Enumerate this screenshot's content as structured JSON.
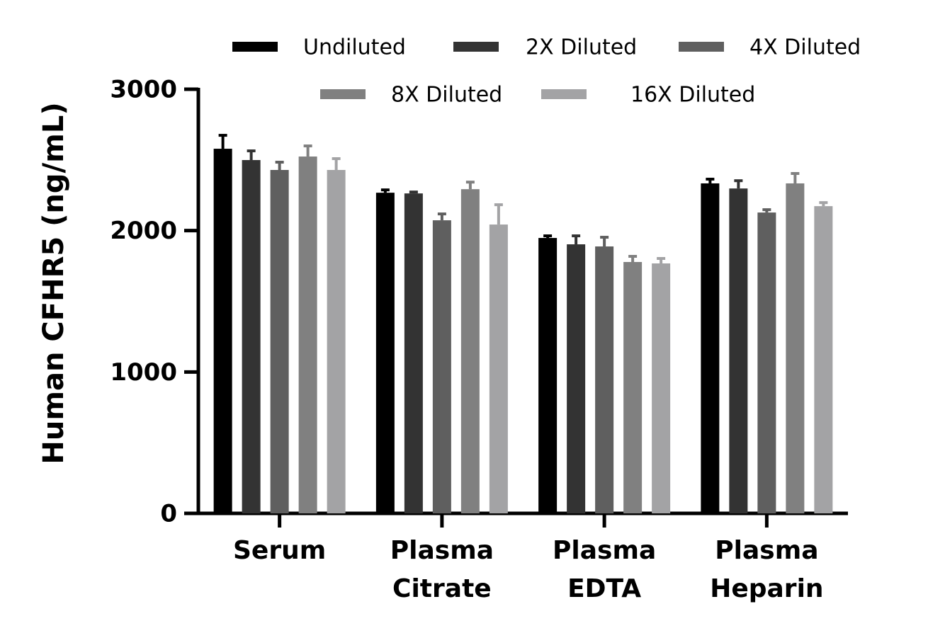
{
  "chart_data": {
    "type": "bar",
    "y_label": "Human CFHR5 (ng/mL)",
    "categories": [
      [
        "Serum"
      ],
      [
        "Plasma",
        "Citrate"
      ],
      [
        "Plasma",
        "EDTA"
      ],
      [
        "Plasma",
        "Heparin"
      ]
    ],
    "series": [
      {
        "name": "Undiluted",
        "color": "#000000",
        "values": [
          2579,
          2268,
          1948,
          2334
        ],
        "errors": [
          95,
          20,
          15,
          30
        ]
      },
      {
        "name": "2X Diluted",
        "color": "#333333",
        "values": [
          2499,
          2263,
          1903,
          2298
        ],
        "errors": [
          65,
          10,
          60,
          55
        ]
      },
      {
        "name": "4X Diluted",
        "color": "#5f5f5f",
        "values": [
          2429,
          2073,
          1888,
          2128
        ],
        "errors": [
          55,
          45,
          65,
          20
        ]
      },
      {
        "name": "8X Diluted",
        "color": "#808080",
        "values": [
          2524,
          2293,
          1778,
          2334
        ],
        "errors": [
          75,
          50,
          40,
          70
        ]
      },
      {
        "name": "16X Diluted",
        "color": "#a3a3a5",
        "values": [
          2429,
          2043,
          1768,
          2173
        ],
        "errors": [
          80,
          140,
          35,
          25
        ]
      }
    ],
    "ylim": [
      0,
      3000
    ],
    "yticks": [
      0,
      1000,
      2000,
      3000
    ]
  }
}
